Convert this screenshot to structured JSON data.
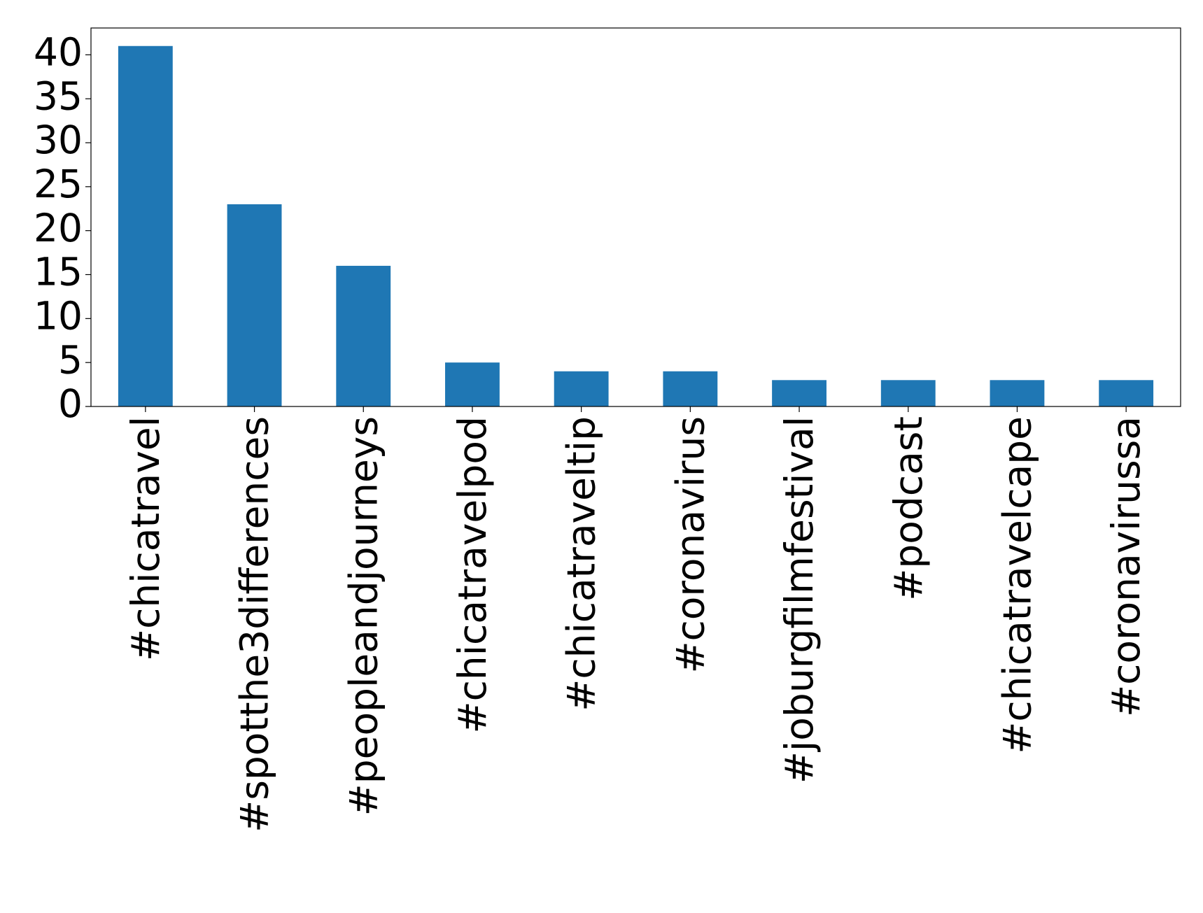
{
  "chart_data": {
    "type": "bar",
    "categories": [
      "#chicatravel",
      "#spotthe3differences",
      "#peopleandjourneys",
      "#chicatravelpod",
      "#chicatraveltip",
      "#coronavirus",
      "#joburgfilmfestival",
      "#podcast",
      "#chicatravelcape",
      "#coronavirussa"
    ],
    "values": [
      41,
      23,
      16,
      5,
      4,
      4,
      3,
      3,
      3,
      3
    ],
    "color": "#1f77b4",
    "ylim": [
      0,
      43.05
    ],
    "yticks": [
      0,
      5,
      10,
      15,
      20,
      25,
      30,
      35,
      40
    ],
    "grid": false
  }
}
